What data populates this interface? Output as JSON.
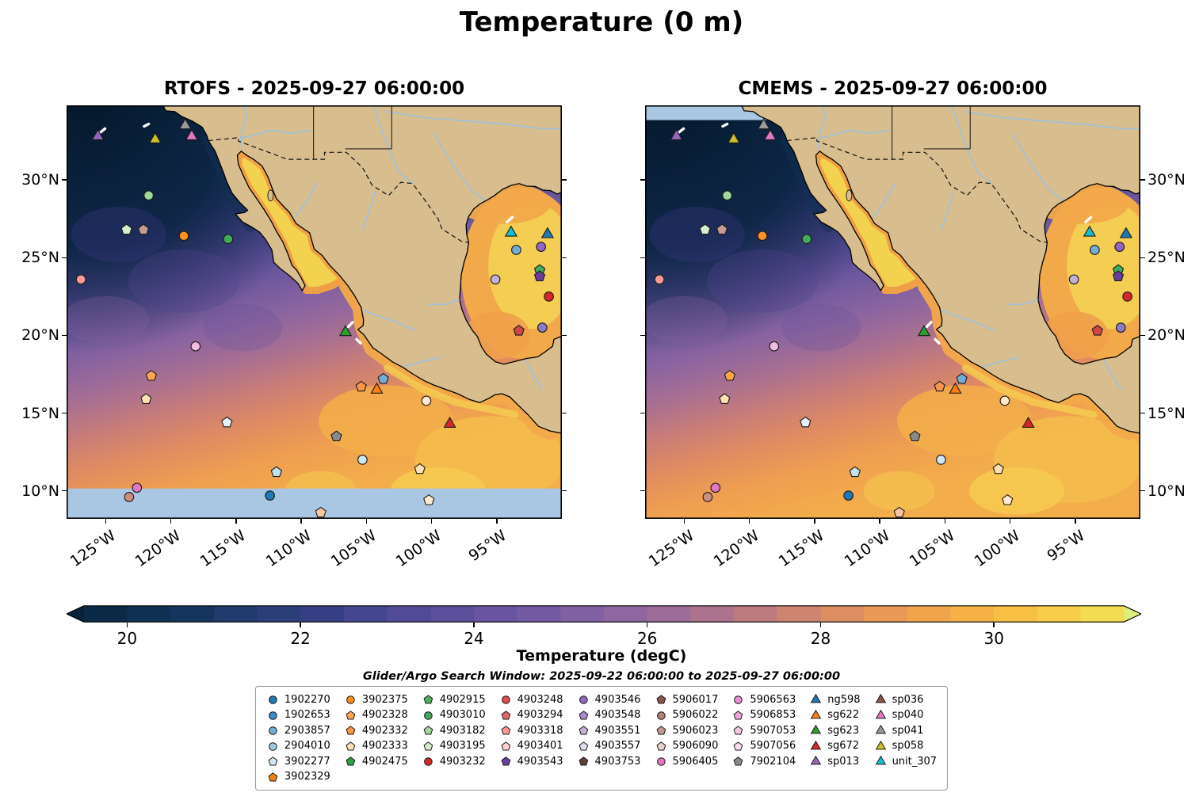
{
  "figure": {
    "title": "Temperature (0 m)"
  },
  "panels": [
    {
      "title": "RTOFS - 2025-09-27 06:00:00"
    },
    {
      "title": "CMEMS - 2025-09-27 06:00:00"
    }
  ],
  "axes": {
    "lat_ticks": [
      {
        "lat": 30,
        "label": "30°N"
      },
      {
        "lat": 25,
        "label": "25°N"
      },
      {
        "lat": 20,
        "label": "20°N"
      },
      {
        "lat": 15,
        "label": "15°N"
      },
      {
        "lat": 10,
        "label": "10°N"
      }
    ],
    "lon_ticks": [
      {
        "lon": -125,
        "label": "125°W"
      },
      {
        "lon": -120,
        "label": "120°W"
      },
      {
        "lon": -115,
        "label": "115°W"
      },
      {
        "lon": -110,
        "label": "110°W"
      },
      {
        "lon": -105,
        "label": "105°W"
      },
      {
        "lon": -100,
        "label": "100°W"
      },
      {
        "lon": -95,
        "label": "95°W"
      }
    ]
  },
  "colorbar": {
    "label": "Temperature (degC)",
    "tick_values": [
      20,
      22,
      24,
      26,
      28,
      30
    ],
    "vmin": 19.5,
    "vmax": 31.5,
    "under_color": "#07223a",
    "over_color": "#dcef7d",
    "band_colors": [
      "#0a2a47",
      "#0f3052",
      "#16355e",
      "#203a6b",
      "#2b3e78",
      "#373f84",
      "#44458f",
      "#504a97",
      "#5c4f9c",
      "#6854a0",
      "#745aa3",
      "#8160a3",
      "#8f66a0",
      "#9d6c99",
      "#ad738e",
      "#bd7b80",
      "#cd8471",
      "#dc8e62",
      "#e89955",
      "#f0a54c",
      "#f5b146",
      "#f8bf45",
      "#f7cd49",
      "#f4dc52"
    ]
  },
  "subtitle": "Glider/Argo Search Window: 2025-09-22 06:00:00 to 2025-09-27 06:00:00",
  "legend": {
    "columns": [
      [
        {
          "id": "1902270",
          "shape": "circle",
          "color": "#1f77b4"
        },
        {
          "id": "1902653",
          "shape": "circle",
          "color": "#3a8bc2"
        },
        {
          "id": "2903857",
          "shape": "circle",
          "color": "#74add5"
        },
        {
          "id": "2904010",
          "shape": "circle",
          "color": "#9ecae1"
        },
        {
          "id": "3902277",
          "shape": "pentagon",
          "color": "#cfe8f3"
        },
        {
          "id": "3902329",
          "shape": "pentagon",
          "color": "#ef820d"
        }
      ],
      [
        {
          "id": "3902375",
          "shape": "circle",
          "color": "#ff9121"
        },
        {
          "id": "4902328",
          "shape": "pentagon",
          "color": "#ffa64d"
        },
        {
          "id": "4902332",
          "shape": "pentagon",
          "color": "#f79646"
        },
        {
          "id": "4902333",
          "shape": "pentagon",
          "color": "#ffe0b2"
        },
        {
          "id": "4902475",
          "shape": "pentagon",
          "color": "#2f9e44"
        }
      ],
      [
        {
          "id": "4902915",
          "shape": "pentagon",
          "color": "#4daf62"
        },
        {
          "id": "4903010",
          "shape": "circle",
          "color": "#41ab5d"
        },
        {
          "id": "4903182",
          "shape": "pentagon",
          "color": "#a1d99b"
        },
        {
          "id": "4903195",
          "shape": "pentagon",
          "color": "#d6efd0"
        },
        {
          "id": "4903232",
          "shape": "circle",
          "color": "#d62728"
        }
      ],
      [
        {
          "id": "4903248",
          "shape": "circle",
          "color": "#e04b4b"
        },
        {
          "id": "4903294",
          "shape": "pentagon",
          "color": "#e26868"
        },
        {
          "id": "4903318",
          "shape": "pentagon",
          "color": "#ff9896"
        },
        {
          "id": "4903401",
          "shape": "pentagon",
          "color": "#ffd0cf"
        },
        {
          "id": "4903543",
          "shape": "pentagon",
          "color": "#6a3d9a"
        }
      ],
      [
        {
          "id": "4903546",
          "shape": "circle",
          "color": "#9467bd"
        },
        {
          "id": "4903548",
          "shape": "pentagon",
          "color": "#a98bcd"
        },
        {
          "id": "4903551",
          "shape": "pentagon",
          "color": "#c5b0d5"
        },
        {
          "id": "4903557",
          "shape": "pentagon",
          "color": "#e4dced"
        },
        {
          "id": "4903753",
          "shape": "pentagon",
          "color": "#5d4037"
        }
      ],
      [
        {
          "id": "5906017",
          "shape": "pentagon",
          "color": "#8c564b"
        },
        {
          "id": "5906022",
          "shape": "circle",
          "color": "#b08376"
        },
        {
          "id": "5906023",
          "shape": "pentagon",
          "color": "#c49c94"
        },
        {
          "id": "5906090",
          "shape": "pentagon",
          "color": "#e8d3cc"
        },
        {
          "id": "5906405",
          "shape": "circle",
          "color": "#e377c2"
        }
      ],
      [
        {
          "id": "5906563",
          "shape": "circle",
          "color": "#ec8fd0"
        },
        {
          "id": "5906853",
          "shape": "pentagon",
          "color": "#f2a7da"
        },
        {
          "id": "5907053",
          "shape": "pentagon",
          "color": "#f7c6e7"
        },
        {
          "id": "5907056",
          "shape": "pentagon",
          "color": "#fcdef2"
        },
        {
          "id": "7902104",
          "shape": "pentagon",
          "color": "#8a8a8a"
        }
      ],
      [
        {
          "id": "ng598",
          "shape": "triangle",
          "color": "#1f77b4"
        },
        {
          "id": "sg622",
          "shape": "triangle",
          "color": "#ff7f0e"
        },
        {
          "id": "sg623",
          "shape": "triangle",
          "color": "#2ca02c"
        },
        {
          "id": "sg672",
          "shape": "triangle",
          "color": "#d62728"
        },
        {
          "id": "sp013",
          "shape": "triangle",
          "color": "#9467bd"
        }
      ],
      [
        {
          "id": "sp036",
          "shape": "triangle",
          "color": "#8c564b"
        },
        {
          "id": "sp040",
          "shape": "triangle",
          "color": "#e377c2"
        },
        {
          "id": "sp041",
          "shape": "triangle",
          "color": "#9a9a9a"
        },
        {
          "id": "sp058",
          "shape": "triangle",
          "color": "#cdc026"
        },
        {
          "id": "unit_307",
          "shape": "triangle",
          "color": "#17becf"
        }
      ]
    ]
  },
  "chart_data": {
    "type": "heatmap",
    "title": "Temperature (0 m)",
    "panels": [
      "RTOFS - 2025-09-27 06:00:00",
      "CMEMS - 2025-09-27 06:00:00"
    ],
    "variable": "Temperature",
    "units": "degC",
    "lon_range": [
      -128,
      -90
    ],
    "lat_range": [
      8.2,
      34.8
    ],
    "xticks": [
      "125°W",
      "120°W",
      "115°W",
      "110°W",
      "105°W",
      "100°W",
      "95°W"
    ],
    "yticks": [
      "30°N",
      "25°N",
      "20°N",
      "15°N",
      "10°N"
    ],
    "colorbar_ticks": [
      20,
      22,
      24,
      26,
      28,
      30
    ],
    "colorbar_range": [
      19.5,
      31.5
    ],
    "search_window": "2025-09-22 06:00:00 to 2025-09-27 06:00:00",
    "markers": [
      {
        "shape": "triangle",
        "color": "#9467bd",
        "lon": -125.6,
        "lat": 32.8
      },
      {
        "shape": "triangle",
        "color": "#cdc026",
        "lon": -121.2,
        "lat": 32.6
      },
      {
        "shape": "triangle",
        "color": "#9a9a9a",
        "lon": -118.9,
        "lat": 33.5
      },
      {
        "shape": "triangle",
        "color": "#e377c2",
        "lon": -118.4,
        "lat": 32.8
      },
      {
        "shape": "triangle",
        "color": "#2ca02c",
        "lon": -106.6,
        "lat": 20.2
      },
      {
        "shape": "triangle",
        "color": "#ff7f0e",
        "lon": -104.2,
        "lat": 16.5
      },
      {
        "shape": "triangle",
        "color": "#d62728",
        "lon": -98.6,
        "lat": 14.3
      },
      {
        "shape": "triangle",
        "color": "#17becf",
        "lon": -93.9,
        "lat": 26.6
      },
      {
        "shape": "triangle",
        "color": "#1f77b4",
        "lon": -91.1,
        "lat": 26.5
      },
      {
        "shape": "circle",
        "color": "#a1d99b",
        "lon": -121.7,
        "lat": 29.0
      },
      {
        "shape": "circle",
        "color": "#ff9121",
        "lon": -119.0,
        "lat": 26.4
      },
      {
        "shape": "circle",
        "color": "#41ab5d",
        "lon": -115.6,
        "lat": 26.2
      },
      {
        "shape": "circle",
        "color": "#ff9896",
        "lon": -126.9,
        "lat": 23.6
      },
      {
        "shape": "circle",
        "color": "#f2bce2",
        "lon": -118.1,
        "lat": 19.3
      },
      {
        "shape": "circle",
        "color": "#ffe9c9",
        "lon": -100.4,
        "lat": 15.8
      },
      {
        "shape": "circle",
        "color": "#cfe6f5",
        "lon": -105.3,
        "lat": 12.0
      },
      {
        "shape": "circle",
        "color": "#e377c2",
        "lon": -122.6,
        "lat": 10.2
      },
      {
        "shape": "circle",
        "color": "#cc8f7e",
        "lon": -123.2,
        "lat": 9.6
      },
      {
        "shape": "circle",
        "color": "#1f77b4",
        "lon": -112.4,
        "lat": 9.7
      },
      {
        "shape": "circle",
        "color": "#74add5",
        "lon": -93.5,
        "lat": 25.5
      },
      {
        "shape": "circle",
        "color": "#9467bd",
        "lon": -91.6,
        "lat": 25.7
      },
      {
        "shape": "circle",
        "color": "#c5b0d5",
        "lon": -95.1,
        "lat": 23.6
      },
      {
        "shape": "circle",
        "color": "#d62728",
        "lon": -91.0,
        "lat": 22.5
      },
      {
        "shape": "circle",
        "color": "#8e7cc3",
        "lon": -91.5,
        "lat": 20.5
      },
      {
        "shape": "pentagon",
        "color": "#d6efd0",
        "lon": -123.4,
        "lat": 26.8
      },
      {
        "shape": "pentagon",
        "color": "#c49c94",
        "lon": -122.1,
        "lat": 26.8
      },
      {
        "shape": "pentagon",
        "color": "#ffa64d",
        "lon": -121.5,
        "lat": 17.4
      },
      {
        "shape": "pentagon",
        "color": "#ffe0b2",
        "lon": -121.9,
        "lat": 15.9
      },
      {
        "shape": "pentagon",
        "color": "#e8eef5",
        "lon": -115.7,
        "lat": 14.4
      },
      {
        "shape": "pentagon",
        "color": "#74add5",
        "lon": -103.7,
        "lat": 17.2
      },
      {
        "shape": "pentagon",
        "color": "#f79646",
        "lon": -105.4,
        "lat": 16.7
      },
      {
        "shape": "pentagon",
        "color": "#8a8a8a",
        "lon": -107.3,
        "lat": 13.5
      },
      {
        "shape": "pentagon",
        "color": "#bfe3f0",
        "lon": -111.9,
        "lat": 11.2
      },
      {
        "shape": "pentagon",
        "color": "#ffe0b2",
        "lon": -100.9,
        "lat": 11.4
      },
      {
        "shape": "pentagon",
        "color": "#ffe9d0",
        "lon": -100.2,
        "lat": 9.4
      },
      {
        "shape": "pentagon",
        "color": "#f7c59f",
        "lon": -108.5,
        "lat": 8.6
      },
      {
        "shape": "pentagon",
        "color": "#41ab5d",
        "lon": -91.7,
        "lat": 24.2
      },
      {
        "shape": "pentagon",
        "color": "#6a3d9a",
        "lon": -91.7,
        "lat": 23.8
      },
      {
        "shape": "pentagon",
        "color": "#d04545",
        "lon": -93.3,
        "lat": 20.3
      }
    ],
    "tracks": [
      [
        -125.5,
        33.0,
        -125.05,
        33.3
      ],
      [
        -122.05,
        33.45,
        -121.7,
        33.6
      ],
      [
        -106.4,
        20.55,
        -106.05,
        20.85
      ],
      [
        -105.75,
        19.75,
        -105.45,
        19.5
      ],
      [
        -94.2,
        27.3,
        -93.8,
        27.6
      ]
    ]
  }
}
